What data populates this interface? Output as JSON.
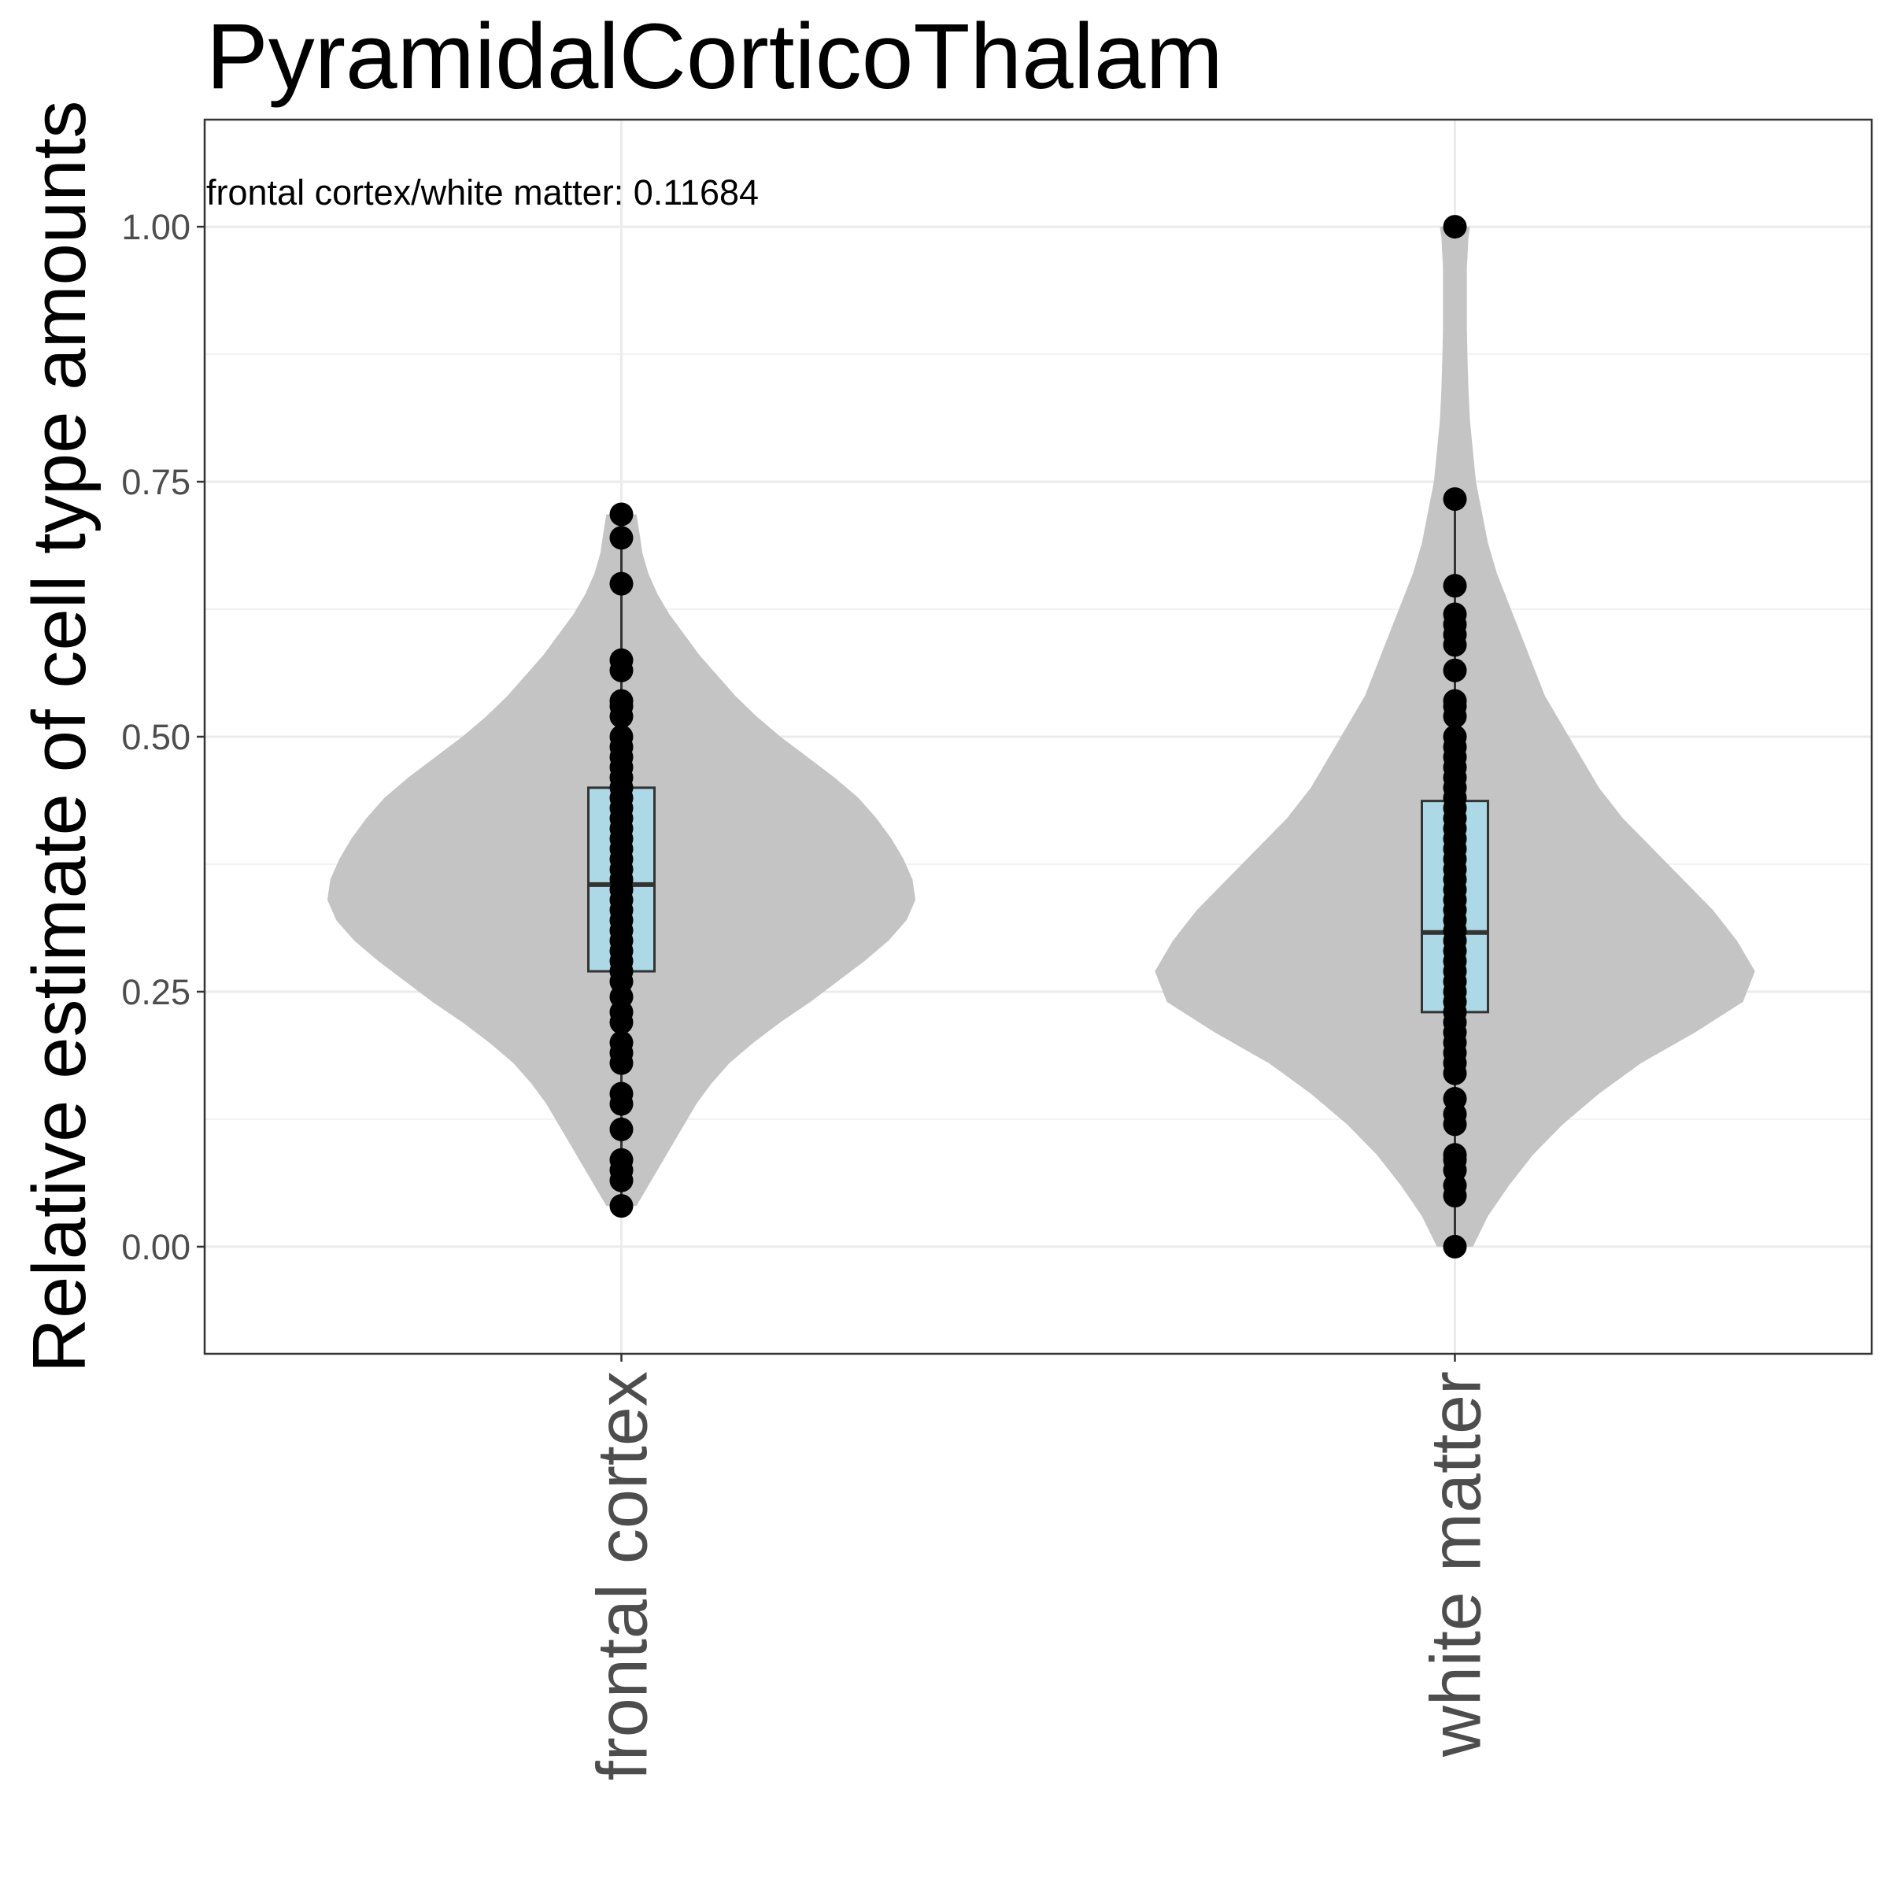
{
  "chart_data": {
    "type": "violin",
    "title": "PyramidalCorticoThalam",
    "ylabel": "Relative estimate of cell type amounts",
    "xlabel": "",
    "annotation": "frontal cortex/white matter: 0.11684",
    "ylim": [
      -0.105,
      1.105
    ],
    "yticks": [
      0.0,
      0.25,
      0.5,
      0.75,
      1.0
    ],
    "ytick_labels": [
      "0.00",
      "0.25",
      "0.50",
      "0.75",
      "1.00"
    ],
    "grid": true,
    "legend": "none",
    "colors": {
      "violin": "#c4c4c4",
      "box": "#add8e6",
      "points": "#000000",
      "outline": "#333333"
    },
    "categories": [
      "frontal cortex",
      "white matter"
    ],
    "groups": [
      {
        "name": "frontal cortex",
        "box": {
          "min": 0.04,
          "q1": 0.27,
          "median": 0.355,
          "q3": 0.45,
          "max": 0.718
        },
        "violin": {
          "y": [
            0.04,
            0.06,
            0.08,
            0.1,
            0.12,
            0.14,
            0.16,
            0.18,
            0.2,
            0.22,
            0.24,
            0.26,
            0.28,
            0.3,
            0.32,
            0.34,
            0.36,
            0.38,
            0.4,
            0.42,
            0.44,
            0.46,
            0.48,
            0.5,
            0.52,
            0.54,
            0.56,
            0.58,
            0.6,
            0.62,
            0.64,
            0.66,
            0.68,
            0.7,
            0.718
          ],
          "half_width": [
            0.05,
            0.09,
            0.13,
            0.17,
            0.21,
            0.25,
            0.3,
            0.36,
            0.44,
            0.53,
            0.63,
            0.72,
            0.81,
            0.89,
            0.95,
            0.98,
            0.97,
            0.94,
            0.9,
            0.85,
            0.79,
            0.71,
            0.62,
            0.53,
            0.45,
            0.38,
            0.32,
            0.26,
            0.21,
            0.16,
            0.12,
            0.09,
            0.07,
            0.06,
            0.05
          ]
        },
        "points": [
          0.04,
          0.065,
          0.075,
          0.085,
          0.115,
          0.14,
          0.15,
          0.18,
          0.19,
          0.2,
          0.22,
          0.23,
          0.245,
          0.26,
          0.27,
          0.28,
          0.29,
          0.3,
          0.31,
          0.32,
          0.33,
          0.34,
          0.35,
          0.36,
          0.37,
          0.38,
          0.39,
          0.4,
          0.41,
          0.42,
          0.43,
          0.44,
          0.45,
          0.46,
          0.47,
          0.48,
          0.49,
          0.5,
          0.52,
          0.53,
          0.535,
          0.565,
          0.575,
          0.65,
          0.695,
          0.718
        ]
      },
      {
        "name": "white matter",
        "box": {
          "min": 0.0,
          "q1": 0.23,
          "median": 0.308,
          "q3": 0.437,
          "max": 0.733
        },
        "violin": {
          "y": [
            0.0,
            0.03,
            0.06,
            0.09,
            0.12,
            0.15,
            0.18,
            0.21,
            0.24,
            0.27,
            0.3,
            0.33,
            0.36,
            0.39,
            0.42,
            0.45,
            0.48,
            0.51,
            0.54,
            0.57,
            0.6,
            0.63,
            0.66,
            0.69,
            0.72,
            0.75,
            0.78,
            0.81,
            0.84,
            0.87,
            0.9,
            0.93,
            0.96,
            0.99,
            1.0
          ],
          "half_width": [
            0.06,
            0.11,
            0.18,
            0.26,
            0.36,
            0.48,
            0.62,
            0.8,
            0.96,
            1.0,
            0.94,
            0.86,
            0.76,
            0.66,
            0.56,
            0.48,
            0.42,
            0.36,
            0.3,
            0.26,
            0.22,
            0.18,
            0.14,
            0.11,
            0.09,
            0.07,
            0.06,
            0.05,
            0.045,
            0.042,
            0.04,
            0.04,
            0.04,
            0.045,
            0.05
          ]
        },
        "points": [
          0.0,
          0.05,
          0.06,
          0.075,
          0.085,
          0.09,
          0.12,
          0.13,
          0.145,
          0.17,
          0.18,
          0.19,
          0.2,
          0.21,
          0.22,
          0.23,
          0.24,
          0.25,
          0.26,
          0.27,
          0.28,
          0.29,
          0.3,
          0.31,
          0.32,
          0.33,
          0.34,
          0.35,
          0.36,
          0.37,
          0.38,
          0.39,
          0.4,
          0.41,
          0.42,
          0.43,
          0.44,
          0.45,
          0.46,
          0.47,
          0.48,
          0.49,
          0.5,
          0.52,
          0.53,
          0.535,
          0.565,
          0.59,
          0.6,
          0.61,
          0.62,
          0.648,
          0.733,
          1.0
        ]
      }
    ]
  }
}
